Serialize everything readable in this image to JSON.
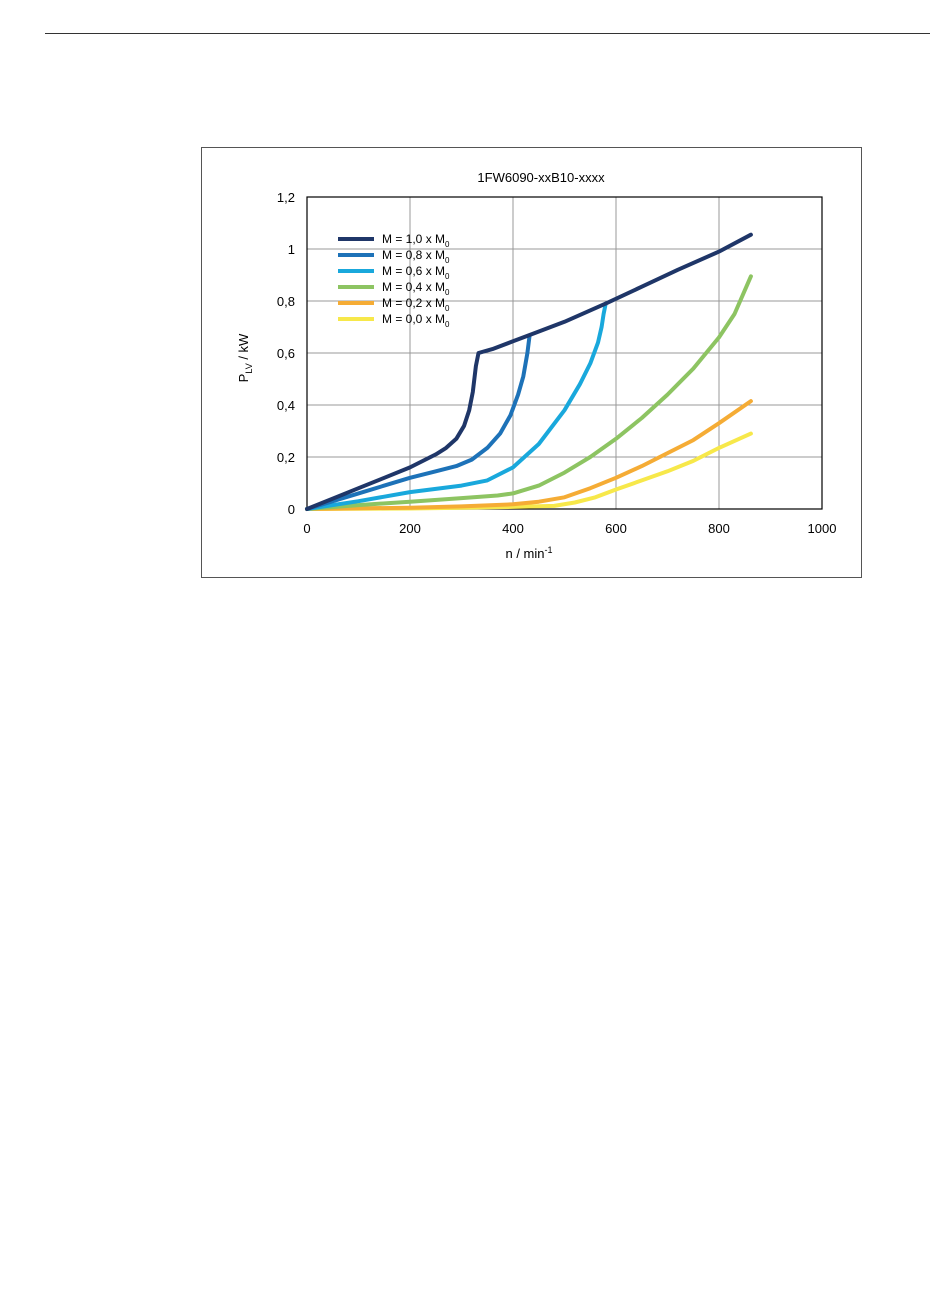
{
  "chart_data": {
    "type": "line",
    "title": "1FW6090-xxB10-xxxx",
    "xlabel": {
      "main": "n / min",
      "sup": "-1"
    },
    "ylabel": {
      "main": "P",
      "sub": "LV",
      "rest": " / kW"
    },
    "xlim": [
      0,
      1000
    ],
    "ylim": [
      0,
      1.2
    ],
    "xticks": [
      0,
      200,
      400,
      600,
      800,
      1000
    ],
    "xtick_labels": [
      "0",
      "200",
      "400",
      "600",
      "800",
      "1000"
    ],
    "yticks": [
      0,
      0.2,
      0.4,
      0.6,
      0.8,
      1.0,
      1.2
    ],
    "ytick_labels": [
      "0",
      "0,2",
      "0,4",
      "0,6",
      "0,8",
      "1",
      "1,2"
    ],
    "grid": true,
    "legend_position": "top-left",
    "series": [
      {
        "name": {
          "main": "M = 1,0 x M",
          "sub": "0"
        },
        "color": "#1f3668",
        "x": [
          0,
          50,
          100,
          150,
          200,
          250,
          270,
          290,
          305,
          315,
          322,
          328,
          333,
          360,
          400,
          440,
          500,
          580,
          650,
          720,
          800,
          862
        ],
        "y": [
          0,
          0.04,
          0.08,
          0.12,
          0.16,
          0.21,
          0.235,
          0.27,
          0.32,
          0.38,
          0.45,
          0.55,
          0.6,
          0.615,
          0.645,
          0.675,
          0.72,
          0.79,
          0.855,
          0.92,
          0.99,
          1.055
        ]
      },
      {
        "name": {
          "main": "M = 0,8 x M",
          "sub": "0"
        },
        "color": "#1d72b8",
        "x": [
          0,
          50,
          100,
          150,
          200,
          250,
          290,
          320,
          350,
          375,
          395,
          410,
          420,
          428,
          432
        ],
        "y": [
          0,
          0.03,
          0.06,
          0.09,
          0.12,
          0.145,
          0.165,
          0.19,
          0.235,
          0.29,
          0.36,
          0.44,
          0.51,
          0.6,
          0.665
        ]
      },
      {
        "name": {
          "main": "M = 0,6 x M",
          "sub": "0"
        },
        "color": "#19a8dc",
        "x": [
          0,
          100,
          200,
          300,
          350,
          400,
          450,
          500,
          530,
          550,
          565,
          572,
          576,
          580
        ],
        "y": [
          0,
          0.03,
          0.065,
          0.09,
          0.11,
          0.16,
          0.25,
          0.38,
          0.48,
          0.56,
          0.64,
          0.7,
          0.75,
          0.79
        ]
      },
      {
        "name": {
          "main": "M = 0,4 x M",
          "sub": "0"
        },
        "color": "#8dc462",
        "x": [
          0,
          100,
          200,
          300,
          370,
          400,
          450,
          500,
          550,
          600,
          650,
          700,
          750,
          800,
          830,
          862
        ],
        "y": [
          0,
          0.015,
          0.028,
          0.042,
          0.052,
          0.06,
          0.09,
          0.14,
          0.2,
          0.27,
          0.35,
          0.44,
          0.54,
          0.66,
          0.75,
          0.895
        ]
      },
      {
        "name": {
          "main": "M = 0,2 x M",
          "sub": "0"
        },
        "color": "#f5ac35",
        "x": [
          0,
          200,
          300,
          400,
          450,
          500,
          550,
          600,
          650,
          700,
          750,
          800,
          862
        ],
        "y": [
          0,
          0.005,
          0.01,
          0.018,
          0.028,
          0.045,
          0.08,
          0.12,
          0.165,
          0.215,
          0.265,
          0.33,
          0.415
        ]
      },
      {
        "name": {
          "main": "M = 0,0 x M",
          "sub": "0"
        },
        "color": "#f7e84a",
        "x": [
          0,
          200,
          300,
          400,
          480,
          520,
          560,
          600,
          650,
          700,
          750,
          800,
          862
        ],
        "y": [
          0,
          0.002,
          0.005,
          0.008,
          0.012,
          0.025,
          0.045,
          0.075,
          0.11,
          0.145,
          0.185,
          0.235,
          0.29
        ]
      }
    ]
  }
}
